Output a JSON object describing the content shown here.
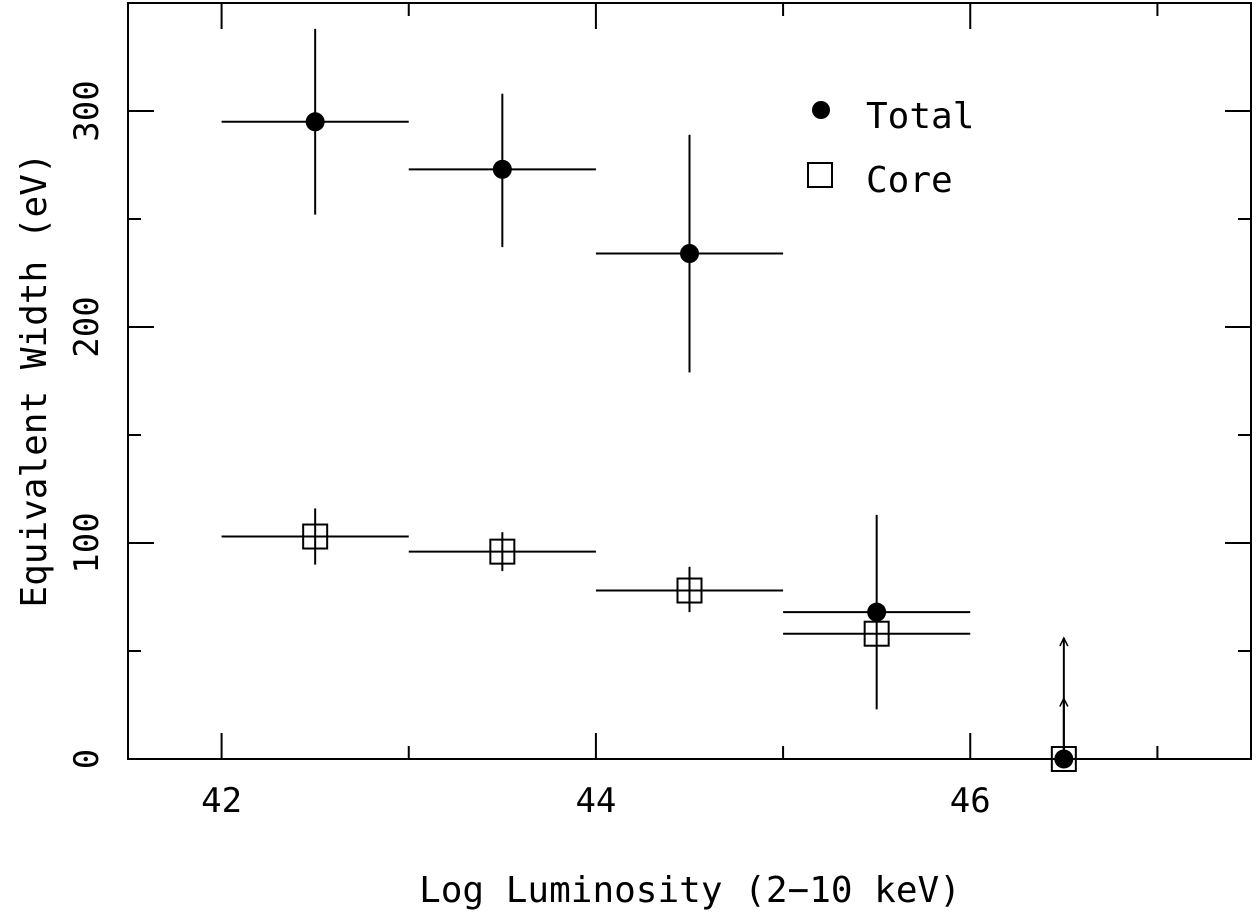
{
  "chart_data": {
    "type": "scatter",
    "xlabel": "Log Luminosity (2−10 keV)",
    "ylabel": "Equivalent Width  (eV)",
    "xlim": [
      41.5,
      47.5
    ],
    "ylim": [
      0,
      350
    ],
    "x_ticks": [
      "42",
      "44",
      "46"
    ],
    "y_ticks": [
      "0",
      "100",
      "200",
      "300"
    ],
    "grid": false,
    "legend_placement": "top-right",
    "series": [
      {
        "name": "Total",
        "marker": "filled-circle",
        "points": [
          {
            "x": 42.5,
            "y": 295,
            "xerr": [
              0.5,
              0.5
            ],
            "yerr_low": 252,
            "yerr_high": 338
          },
          {
            "x": 43.5,
            "y": 273,
            "xerr": [
              0.5,
              0.5
            ],
            "yerr_low": 237,
            "yerr_high": 308
          },
          {
            "x": 44.5,
            "y": 234,
            "xerr": [
              0.5,
              0.5
            ],
            "yerr_low": 179,
            "yerr_high": 289
          },
          {
            "x": 45.5,
            "y": 68,
            "xerr": [
              0.5,
              0.5
            ],
            "yerr_low": 23,
            "yerr_high": 113
          },
          {
            "x": 46.5,
            "y": 0,
            "xerr": [
              0.5,
              0.5
            ],
            "upper_limit": 56
          }
        ]
      },
      {
        "name": "Core",
        "marker": "open-square",
        "points": [
          {
            "x": 42.5,
            "y": 103,
            "xerr": [
              0.5,
              0.5
            ],
            "yerr_low": 90,
            "yerr_high": 116
          },
          {
            "x": 43.5,
            "y": 96,
            "xerr": [
              0.5,
              0.5
            ],
            "yerr_low": 87,
            "yerr_high": 105
          },
          {
            "x": 44.5,
            "y": 78,
            "xerr": [
              0.5,
              0.5
            ],
            "yerr_low": 68,
            "yerr_high": 89
          },
          {
            "x": 45.5,
            "y": 58,
            "xerr": [
              0.5,
              0.5
            ],
            "yerr_low": 58,
            "yerr_high": 58
          },
          {
            "x": 46.5,
            "y": 0,
            "xerr": [
              0.5,
              0.5
            ],
            "upper_limit": 28
          }
        ]
      }
    ]
  }
}
